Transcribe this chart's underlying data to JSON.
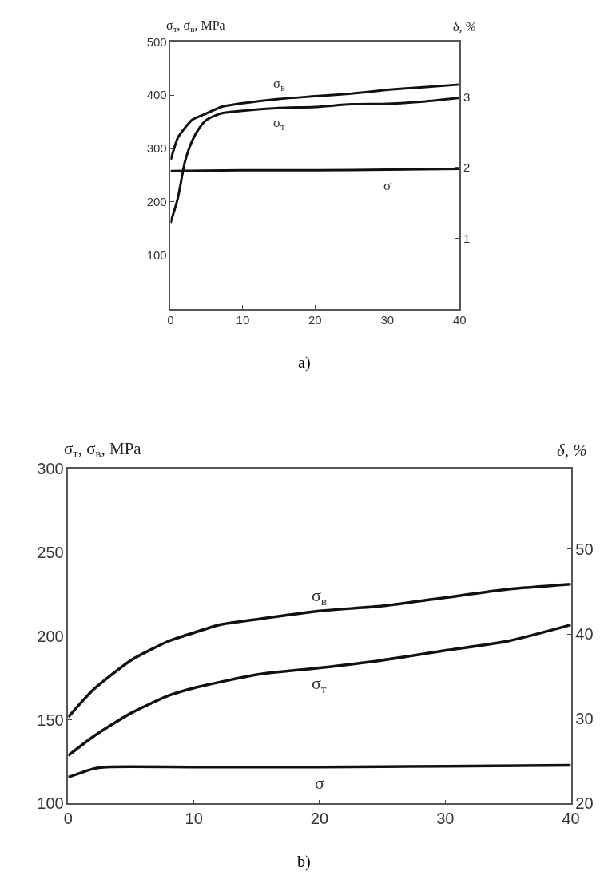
{
  "chart_data": [
    {
      "type": "line",
      "ylabel": "σ$_{т}$, σ$_{в}$, MPa",
      "y2label": "δ, %",
      "annotations": [
        "a)"
      ],
      "legend": false,
      "marker": "none",
      "line_style": "solid",
      "xlim": [
        0,
        40
      ],
      "xticks": [
        0,
        10,
        20,
        30,
        40
      ],
      "ylim": [
        0,
        500
      ],
      "yticks": [
        100,
        200,
        300,
        400,
        500
      ],
      "y2lim": [
        0,
        3.78
      ],
      "y2ticks": [
        1,
        2,
        3
      ],
      "series": [
        {
          "name": "σ$_{в}$",
          "color": "#111111",
          "x": [
            0,
            1,
            2,
            3,
            5,
            7,
            10,
            15,
            20,
            25,
            30,
            35,
            40
          ],
          "values": [
            278,
            320,
            339,
            354,
            366,
            378,
            385,
            393,
            398,
            403,
            410,
            415,
            420
          ]
        },
        {
          "name": "σ$_{т}$",
          "color": "#111111",
          "x": [
            0,
            1,
            2,
            3,
            4,
            5,
            7,
            10,
            15,
            20,
            25,
            30,
            35,
            40
          ],
          "values": [
            161,
            207,
            276,
            315,
            339,
            354,
            366,
            371,
            376,
            378,
            383,
            384,
            388,
            395
          ]
        },
        {
          "name": "σ",
          "color": "#111111",
          "axis": "y2",
          "x": [
            0,
            10,
            20,
            30,
            40
          ],
          "values": [
            1.95,
            1.96,
            1.96,
            1.97,
            1.98
          ]
        }
      ]
    },
    {
      "type": "line",
      "ylabel": "σ$_{т}$, σ$_{в}$, MPa",
      "y2label": "δ, %",
      "annotations": [
        "b)"
      ],
      "legend": false,
      "marker": "none",
      "line_style": "solid",
      "xlim": [
        0,
        40
      ],
      "xticks": [
        0,
        10,
        20,
        30,
        40
      ],
      "ylim": [
        100,
        300
      ],
      "yticks": [
        100,
        150,
        200,
        250,
        300
      ],
      "y2lim": [
        20,
        59.5
      ],
      "y2ticks": [
        20,
        30,
        40,
        50
      ],
      "series": [
        {
          "name": "σ$_{в}$",
          "color": "#111111",
          "x": [
            0,
            2,
            5,
            8,
            10,
            12,
            15,
            20,
            25,
            30,
            35,
            40
          ],
          "values": [
            151.6,
            168,
            185.6,
            197,
            202,
            206.7,
            210,
            215,
            218,
            223,
            228,
            231
          ]
        },
        {
          "name": "σ$_{т}$",
          "color": "#111111",
          "x": [
            0,
            2,
            5,
            8,
            10,
            15,
            20,
            25,
            30,
            35,
            40
          ],
          "values": [
            128.6,
            140,
            154,
            164.5,
            169,
            177,
            181,
            185.6,
            191.4,
            197,
            206.7
          ]
        },
        {
          "name": "σ",
          "color": "#111111",
          "axis": "y2",
          "x": [
            0,
            2,
            3,
            10,
            20,
            30,
            40
          ],
          "values": [
            23.1,
            24.1,
            24.3,
            24.3,
            24.3,
            24.4,
            24.5
          ]
        }
      ]
    }
  ]
}
